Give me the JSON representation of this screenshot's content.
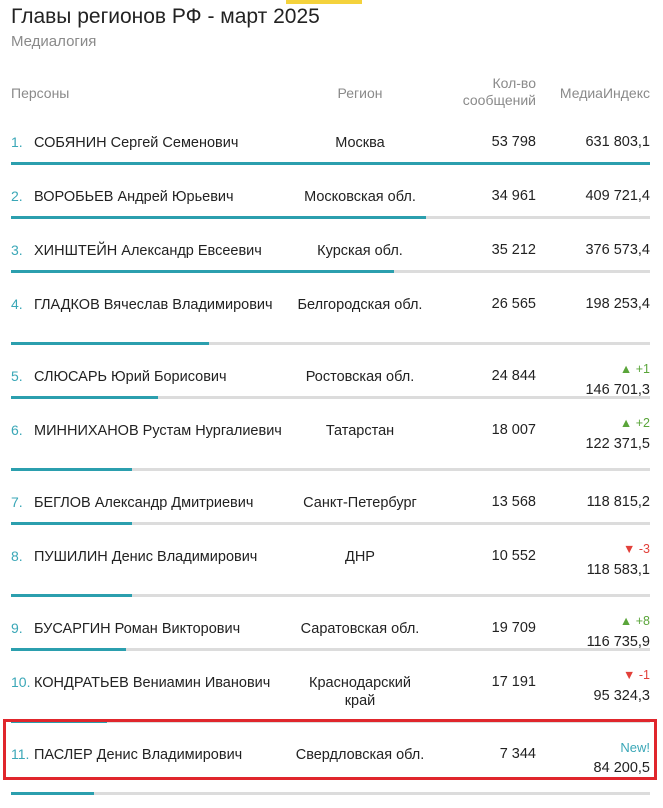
{
  "page": {
    "title": "Главы регионов РФ - март 2025",
    "subtitle": "Медиалогия"
  },
  "columns": {
    "person": "Персоны",
    "region": "Регион",
    "count": "Кол-во сообщений",
    "index": "МедиаИндекс"
  },
  "rows": [
    {
      "rank": "1.",
      "person": "СОБЯНИН Сергей Семенович",
      "region": "Москва",
      "count": "53 798",
      "index": "631 803,1",
      "change": "",
      "change_dir": "none",
      "bar_fraction": 1.0
    },
    {
      "rank": "2.",
      "person": "ВОРОБЬЕВ Андрей Юрьевич",
      "region": "Московская обл.",
      "count": "34 961",
      "index": "409 721,4",
      "change": "",
      "change_dir": "none",
      "bar_fraction": 0.65
    },
    {
      "rank": "3.",
      "person": "ХИНШТЕЙН Александр Евсеевич",
      "region": "Курская обл.",
      "count": "35 212",
      "index": "376 573,4",
      "change": "",
      "change_dir": "none",
      "bar_fraction": 0.6
    },
    {
      "rank": "4.",
      "person": "ГЛАДКОВ Вячеслав Владимирович",
      "region": "Белгородская обл.",
      "count": "26 565",
      "index": "198 253,4",
      "change": "",
      "change_dir": "none",
      "bar_fraction": 0.31
    },
    {
      "rank": "5.",
      "person": "СЛЮСАРЬ Юрий Борисович",
      "region": "Ростовская обл.",
      "count": "24 844",
      "index": "146 701,3",
      "change": "▲ +1",
      "change_dir": "up",
      "bar_fraction": 0.23
    },
    {
      "rank": "6.",
      "person": "МИННИХАНОВ Рустам Нургалиевич",
      "region": "Татарстан",
      "count": "18 007",
      "index": "122 371,5",
      "change": "▲ +2",
      "change_dir": "up",
      "bar_fraction": 0.19
    },
    {
      "rank": "7.",
      "person": "БЕГЛОВ Александр Дмитриевич",
      "region": "Санкт-Петербург",
      "count": "13 568",
      "index": "118 815,2",
      "change": "",
      "change_dir": "none",
      "bar_fraction": 0.19
    },
    {
      "rank": "8.",
      "person": "ПУШИЛИН Денис Владимирович",
      "region": "ДНР",
      "count": "10 552",
      "index": "118 583,1",
      "change": "▼ -3",
      "change_dir": "down",
      "bar_fraction": 0.19
    },
    {
      "rank": "9.",
      "person": "БУСАРГИН Роман Викторович",
      "region": "Саратовская обл.",
      "count": "19 709",
      "index": "116 735,9",
      "change": "▲ +8",
      "change_dir": "up",
      "bar_fraction": 0.18
    },
    {
      "rank": "10.",
      "person": "КОНДРАТЬЕВ Вениамин Иванович",
      "region": "Краснодарский край",
      "count": "17 191",
      "index": "95 324,3",
      "change": "▼ -1",
      "change_dir": "down",
      "bar_fraction": 0.15
    },
    {
      "rank": "11.",
      "person": "ПАСЛЕР Денис Владимирович",
      "region": "Свердловская обл.",
      "count": "7 344",
      "index": "84 200,5",
      "change": "New!",
      "change_dir": "new",
      "bar_fraction": 0.13
    }
  ],
  "colors": {
    "accent": "#2b9fae",
    "rank": "#3aa7b7",
    "up": "#5aa53a",
    "down": "#e2403a",
    "highlight_border": "#e0262c",
    "top_accent": "#f4d23c"
  }
}
